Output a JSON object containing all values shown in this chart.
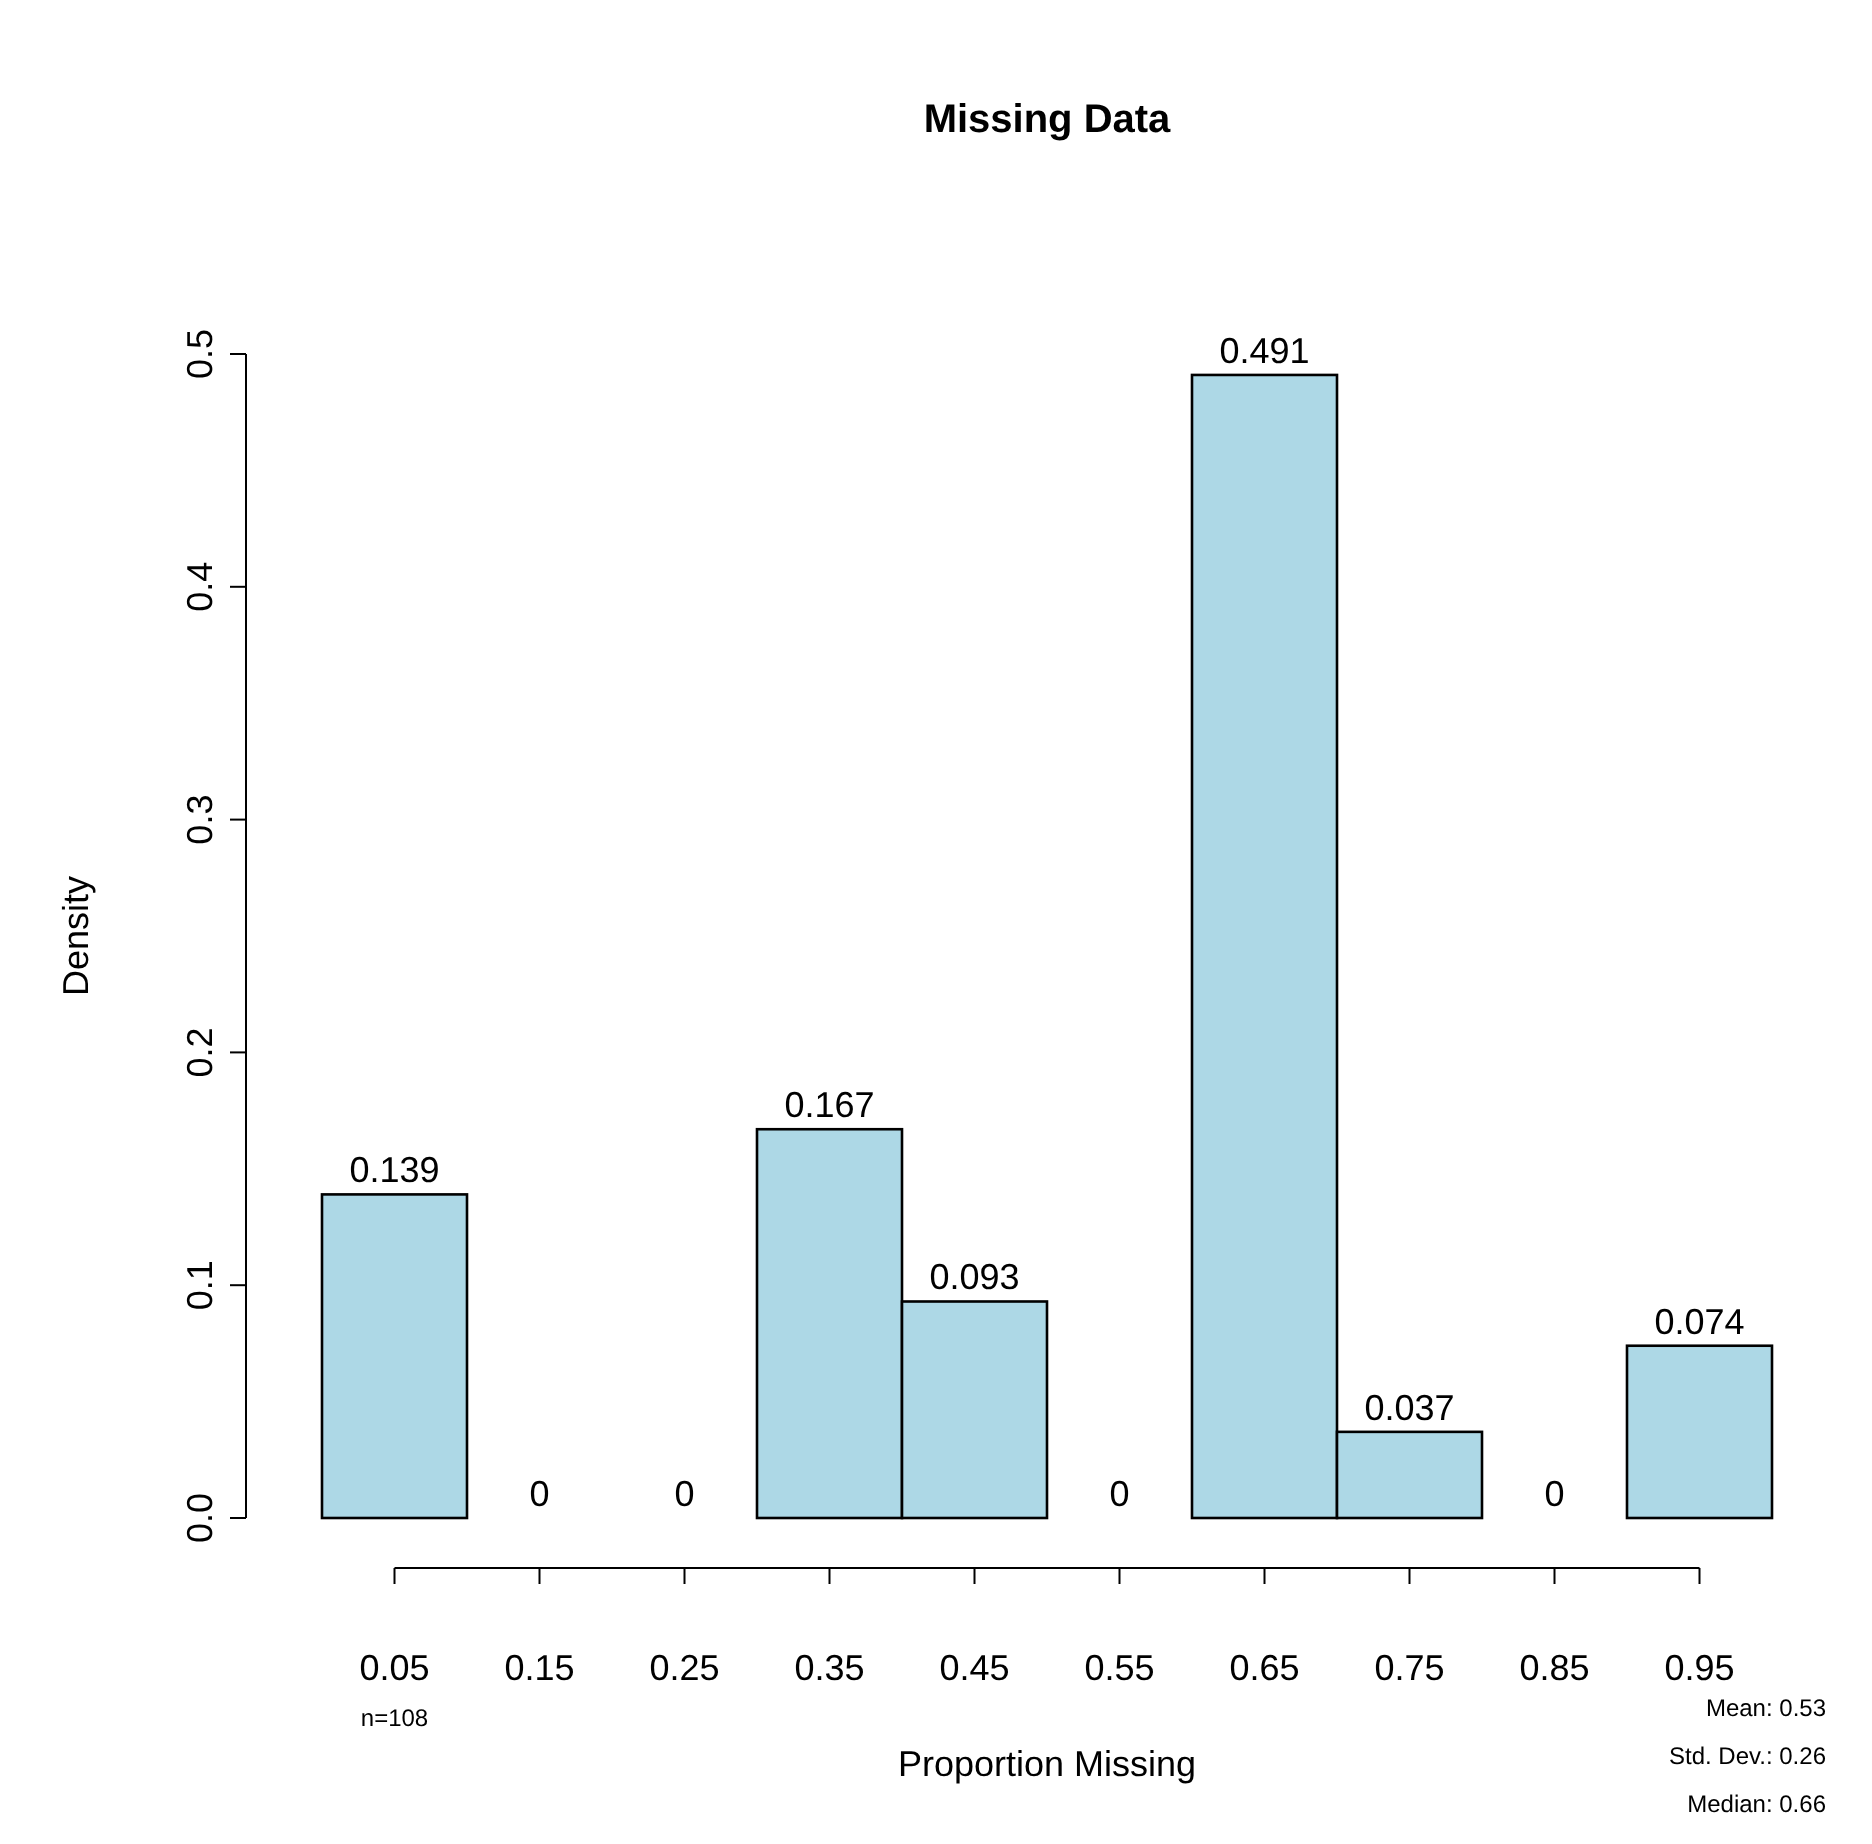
{
  "chart_data": {
    "type": "bar",
    "title": "Missing Data",
    "xlabel": "Proportion Missing",
    "ylabel": "Density",
    "categories": [
      "0.05",
      "0.15",
      "0.25",
      "0.35",
      "0.45",
      "0.55",
      "0.65",
      "0.75",
      "0.85",
      "0.95"
    ],
    "values": [
      0.139,
      0,
      0,
      0.167,
      0.093,
      0,
      0.491,
      0.037,
      0,
      0.074
    ],
    "color": "#add8e6",
    "data_labels": true,
    "ylim": [
      0,
      0.5
    ],
    "yticks": [
      {
        "value": 0,
        "label": "0.0"
      },
      {
        "value": 0.1,
        "label": "0.1"
      },
      {
        "value": 0.2,
        "label": "0.2"
      },
      {
        "value": 0.3,
        "label": "0.3"
      },
      {
        "value": 0.4,
        "label": "0.4"
      },
      {
        "value": 0.5,
        "label": "0.5"
      }
    ],
    "annotations": [
      "n=108",
      "Mean: 0.53",
      "Std. Dev.: 0.26",
      "Median: 0.66"
    ],
    "grid": false
  }
}
